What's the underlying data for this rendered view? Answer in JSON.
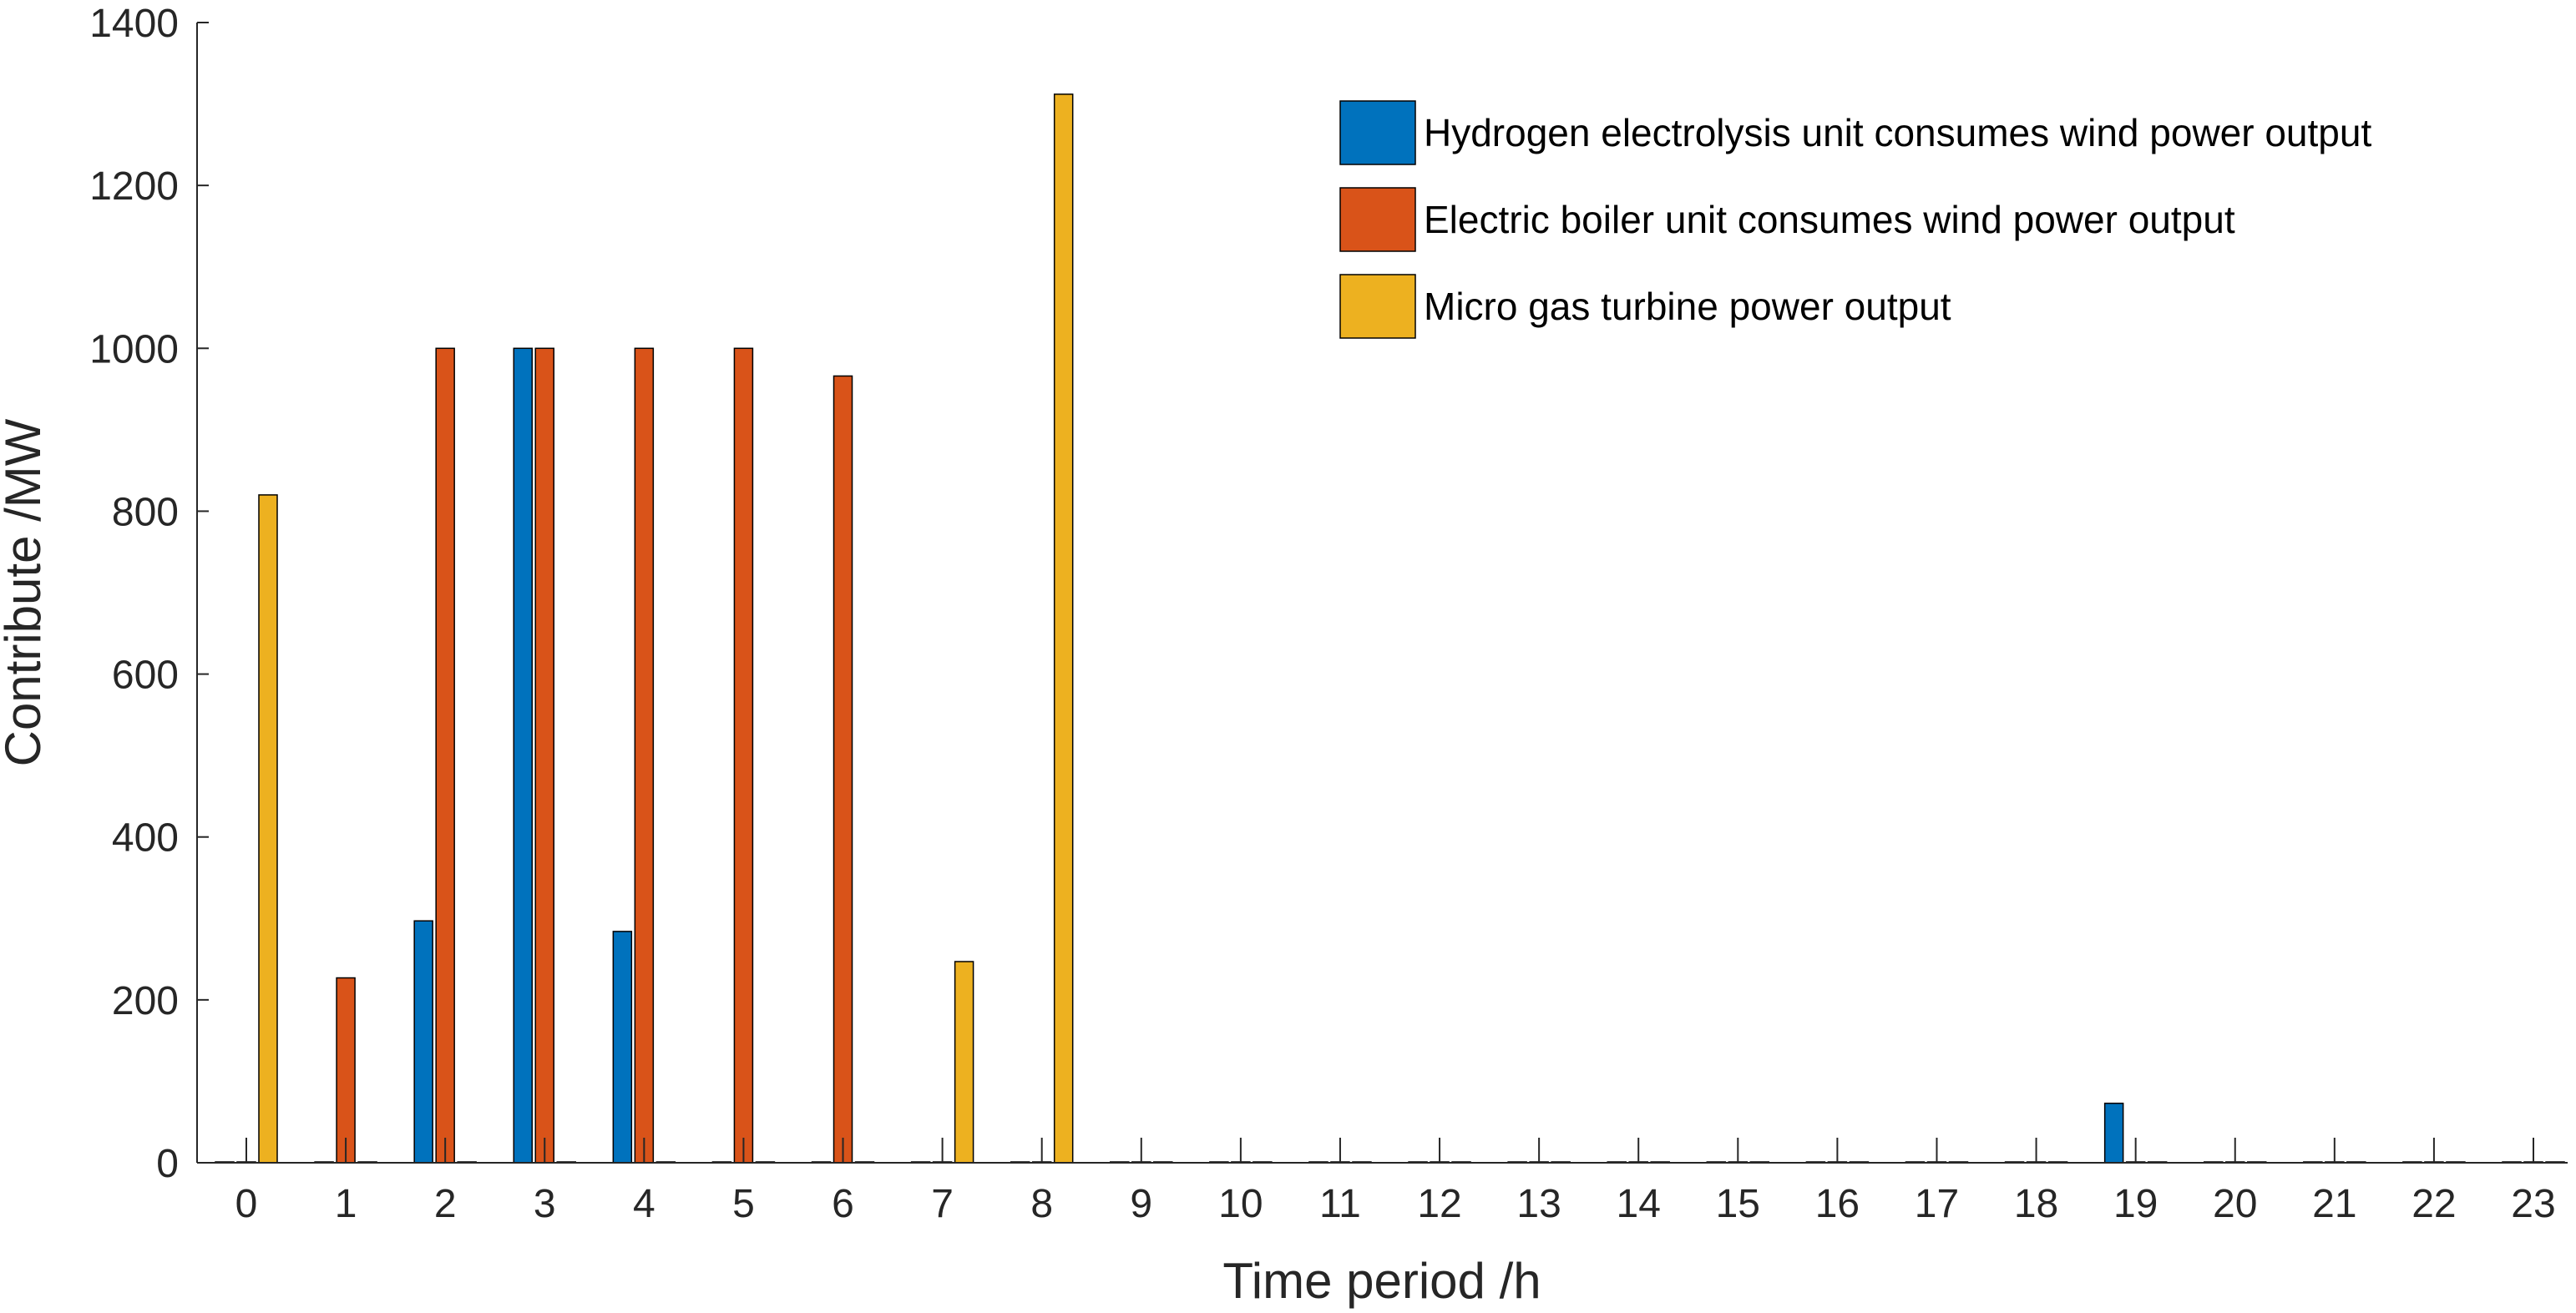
{
  "chart_data": {
    "type": "bar",
    "title": "",
    "xlabel": "Time period /h",
    "ylabel": "Contribute /MW",
    "categories": [
      "0",
      "1",
      "2",
      "3",
      "4",
      "5",
      "6",
      "7",
      "8",
      "9",
      "10",
      "11",
      "12",
      "13",
      "14",
      "15",
      "16",
      "17",
      "18",
      "19",
      "20",
      "21",
      "22",
      "23"
    ],
    "ylim": [
      0,
      1400
    ],
    "yticks": [
      "0",
      "200",
      "400",
      "600",
      "800",
      "1000",
      "1200",
      "1400"
    ],
    "grid": false,
    "legend_position": "top-right",
    "series": [
      {
        "name": "Hydrogen electrolysis unit consumes wind power output",
        "color": "#0072BD",
        "values": [
          0,
          0,
          297,
          1000,
          284,
          0,
          0,
          0,
          0,
          0,
          0,
          0,
          0,
          0,
          0,
          0,
          0,
          0,
          0,
          73,
          0,
          0,
          0,
          0
        ]
      },
      {
        "name": "Electric boiler unit consumes wind power output",
        "color": "#D95319",
        "values": [
          0,
          227,
          1000,
          1000,
          1000,
          1000,
          966,
          0,
          0,
          0,
          0,
          0,
          0,
          0,
          0,
          0,
          0,
          0,
          0,
          0,
          0,
          0,
          0,
          0
        ]
      },
      {
        "name": "Micro gas turbine power output",
        "color": "#EDB120",
        "values": [
          820,
          0,
          0,
          0,
          0,
          0,
          0,
          247,
          1312,
          0,
          0,
          0,
          0,
          0,
          0,
          0,
          0,
          0,
          0,
          0,
          0,
          0,
          0,
          0
        ]
      }
    ]
  }
}
